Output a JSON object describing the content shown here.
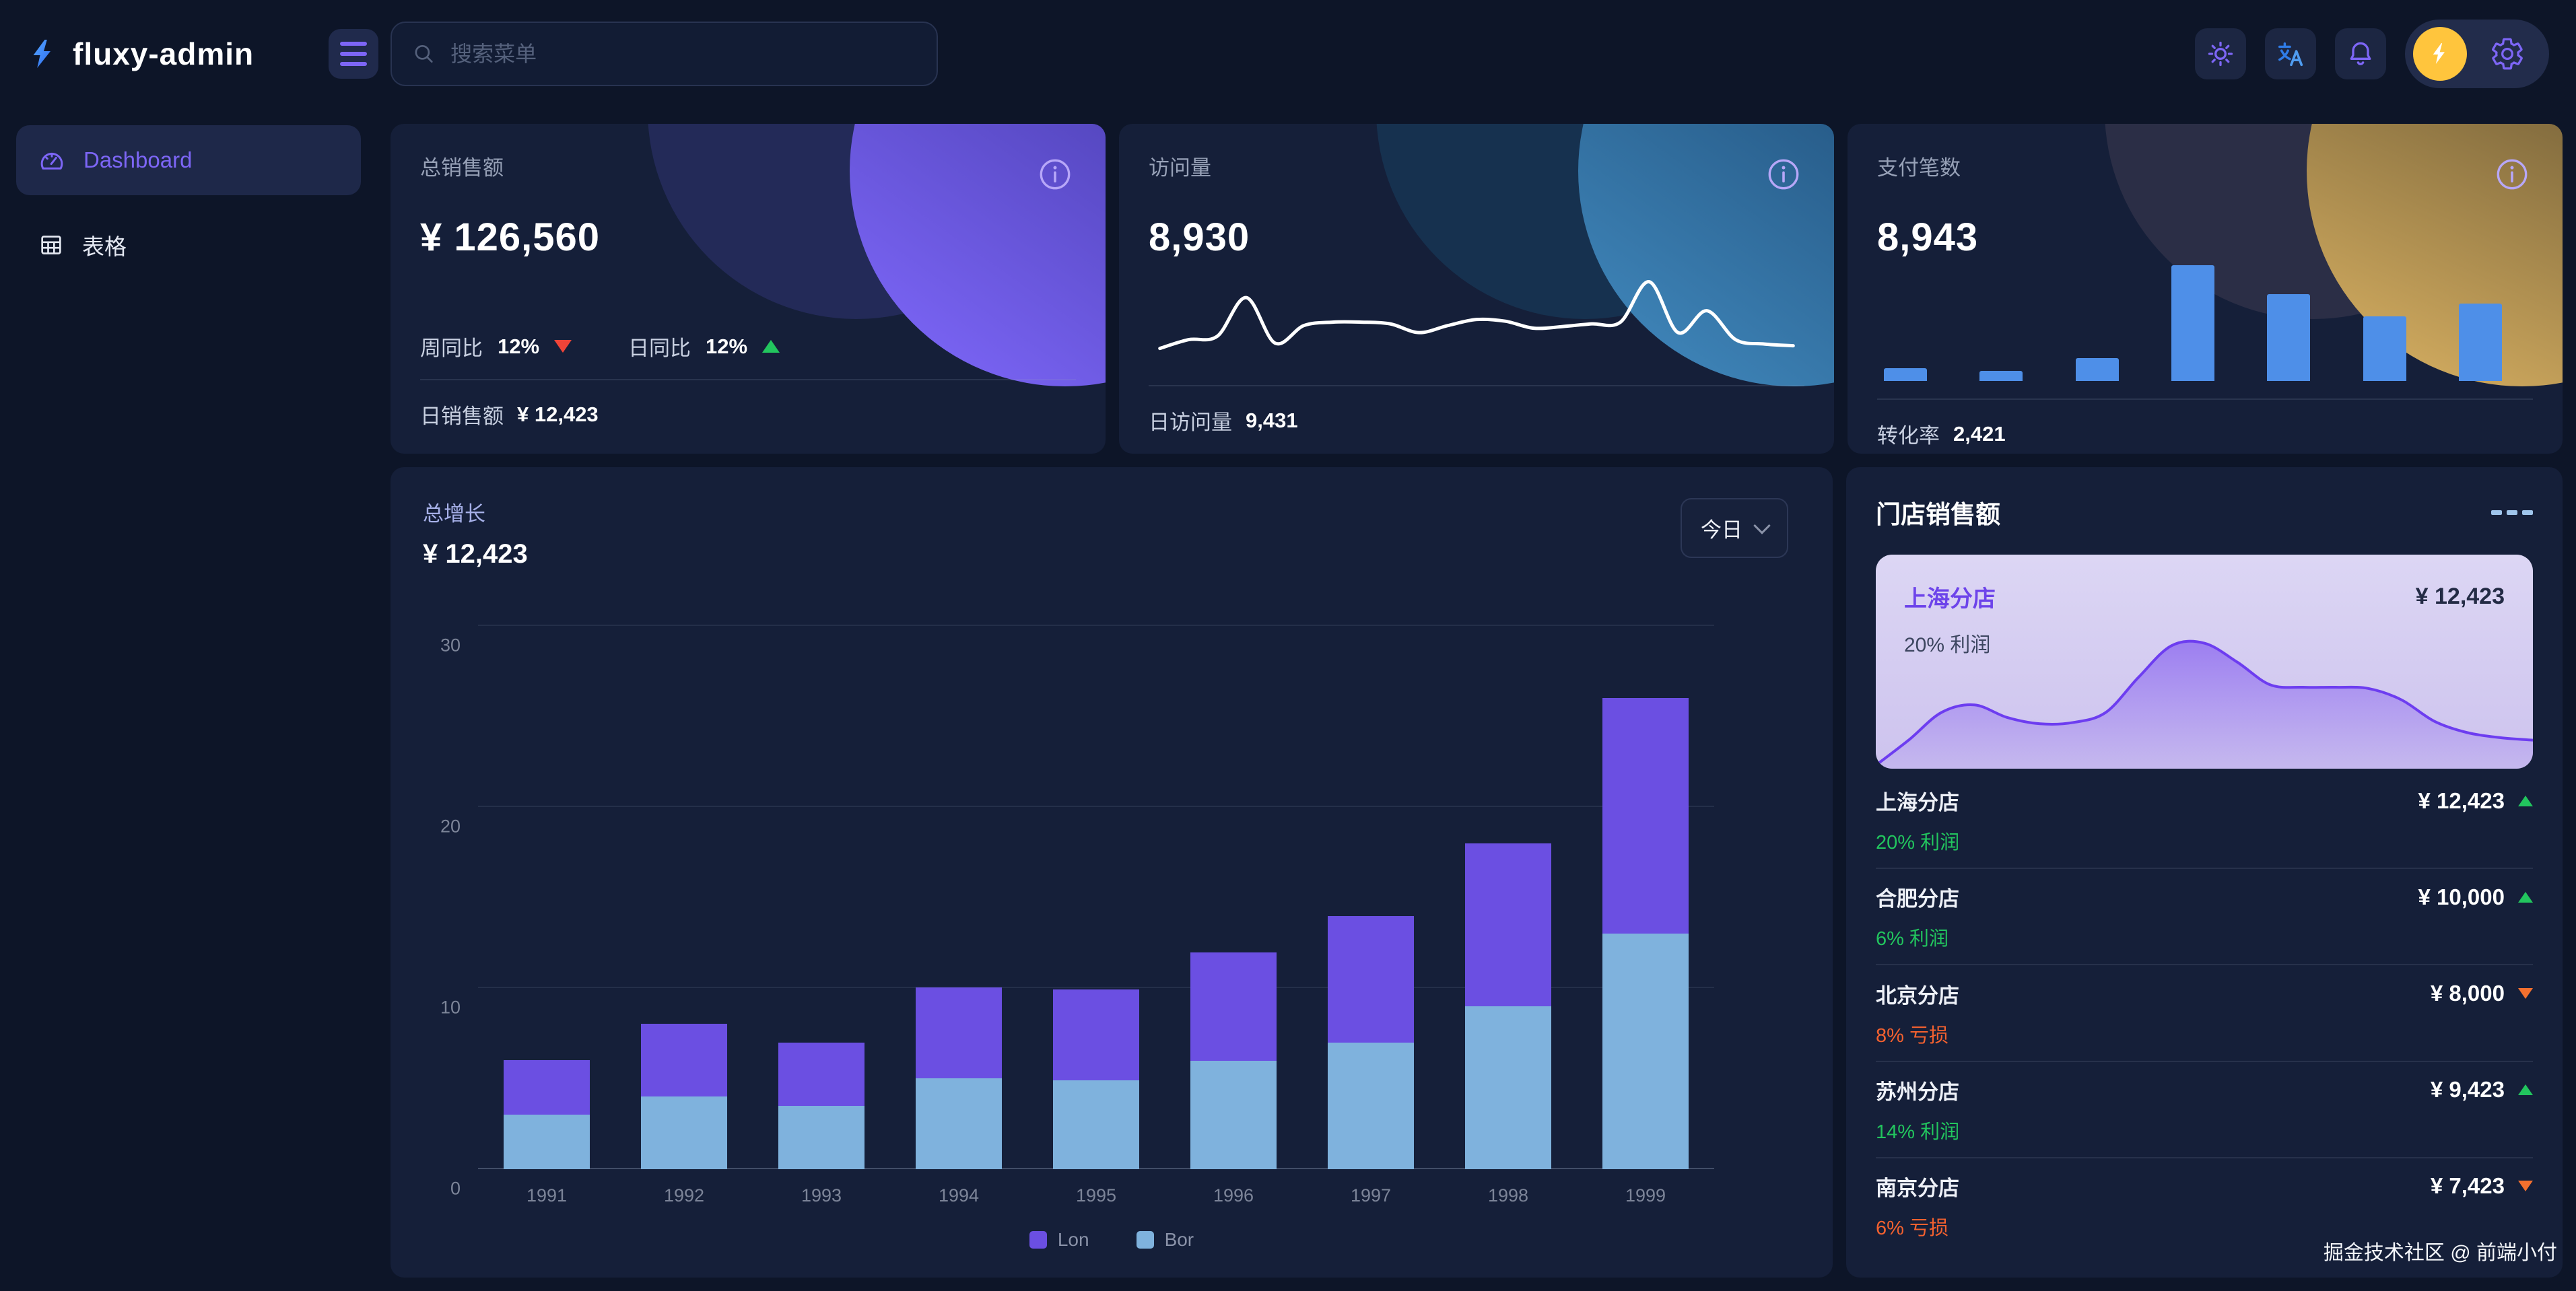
{
  "app": {
    "name": "fluxy-admin"
  },
  "topbar": {
    "search_placeholder": "搜索菜单",
    "icons": [
      "menu-icon",
      "search-icon",
      "sun-icon",
      "translate-icon",
      "bell-icon",
      "avatar-lightning",
      "gear-icon"
    ]
  },
  "sidebar": {
    "items": [
      {
        "id": "dashboard",
        "label": "Dashboard",
        "icon": "gauge-icon",
        "active": true
      },
      {
        "id": "table",
        "label": "表格",
        "icon": "table-icon",
        "active": false
      }
    ]
  },
  "stat_cards": [
    {
      "title": "总销售额",
      "value": "¥ 126,560",
      "stats": [
        {
          "label": "周同比",
          "value": "12%",
          "trend": "down"
        },
        {
          "label": "日同比",
          "value": "12%",
          "trend": "up"
        }
      ],
      "footer_label": "日销售额",
      "footer_value": "¥ 12,423",
      "theme": "purple"
    },
    {
      "title": "访问量",
      "value": "8,930",
      "footer_label": "日访问量",
      "footer_value": "9,431",
      "theme": "blue"
    },
    {
      "title": "支付笔数",
      "value": "8,943",
      "footer_label": "转化率",
      "footer_value": "2,421",
      "theme": "gold"
    }
  ],
  "growth_chart": {
    "title": "总增长",
    "value": "¥ 12,423",
    "range_label": "今日"
  },
  "stores": {
    "title": "门店销售额",
    "highlight": {
      "name": "上海分店",
      "value": "¥ 12,423",
      "sub": "20% 利润"
    },
    "items": [
      {
        "name": "上海分店",
        "value": "¥ 12,423",
        "trend": "up",
        "sub": "20% 利润",
        "sub_type": "profit"
      },
      {
        "name": "合肥分店",
        "value": "¥ 10,000",
        "trend": "up",
        "sub": "6% 利润",
        "sub_type": "profit"
      },
      {
        "name": "北京分店",
        "value": "¥ 8,000",
        "trend": "down",
        "sub": "8% 亏损",
        "sub_type": "loss"
      },
      {
        "name": "苏州分店",
        "value": "¥ 9,423",
        "trend": "up",
        "sub": "14% 利润",
        "sub_type": "profit"
      },
      {
        "name": "南京分店",
        "value": "¥ 7,423",
        "trend": "down",
        "sub": "6% 亏损",
        "sub_type": "loss"
      }
    ]
  },
  "watermark": "掘金技术社区 @ 前端小付",
  "colors": {
    "page_bg": "#0d1528",
    "card_bg": "#151f39",
    "accent_purple": "#6b4fe2",
    "sidebar_active_purple": "#7d66f6",
    "bar_blue": "#7fb2dd",
    "mini_bar_blue": "#4e8fe8",
    "up_green": "#22c55e",
    "down_red": "#f04438",
    "loss_orange": "#f4612f",
    "link_blue": "#3b82f6",
    "avatar_yellow": "#ffc53d",
    "highlight_bg": "#d8d1f2",
    "area_purple": "#6d3df0"
  },
  "chart_data": [
    {
      "id": "growth",
      "type": "bar",
      "stacked": true,
      "title": "总增长",
      "categories": [
        "1991",
        "1992",
        "1993",
        "1994",
        "1995",
        "1996",
        "1997",
        "1998",
        "1999"
      ],
      "series": [
        {
          "name": "Lon",
          "color": "#6b4fe2",
          "values": [
            3,
            4,
            3.5,
            5,
            5,
            6,
            7,
            9,
            13
          ]
        },
        {
          "name": "Bor",
          "color": "#7fb2dd",
          "values": [
            3,
            4,
            3.5,
            5,
            4.9,
            6,
            7,
            9,
            13
          ]
        }
      ],
      "xlabel": "",
      "ylabel": "",
      "ylim": [
        0,
        30
      ],
      "yticks": [
        0,
        10,
        20,
        30
      ],
      "grid": true,
      "legend_position": "bottom"
    },
    {
      "id": "visits-sparkline",
      "type": "line",
      "color": "#ffffff",
      "ylim": [
        0,
        10
      ],
      "values": [
        1.2,
        2.2,
        2.6,
        7.0,
        1.8,
        3.8,
        4.2,
        4.2,
        4.0,
        3.0,
        3.8,
        4.5,
        4.3,
        3.5,
        3.7,
        4.0,
        4.2,
        8.8,
        3.0,
        5.5,
        2.2,
        1.7,
        1.5
      ]
    },
    {
      "id": "payments-bars",
      "type": "bar",
      "color": "#4e8fe8",
      "ylim": [
        0,
        10
      ],
      "values": [
        1.1,
        0.9,
        2.0,
        10.0,
        7.5,
        5.6,
        6.7
      ]
    },
    {
      "id": "shanghai-area",
      "type": "area",
      "color": "#6d3df0",
      "ylim": [
        0,
        10
      ],
      "values": [
        0,
        2.0,
        4.2,
        4.8,
        3.8,
        3.3,
        3.4,
        4.2,
        7.0,
        9.5,
        9.7,
        8.2,
        6.4,
        6.2,
        6.2,
        6.1,
        5.2,
        3.5,
        2.6,
        2.2,
        2.0
      ]
    }
  ]
}
